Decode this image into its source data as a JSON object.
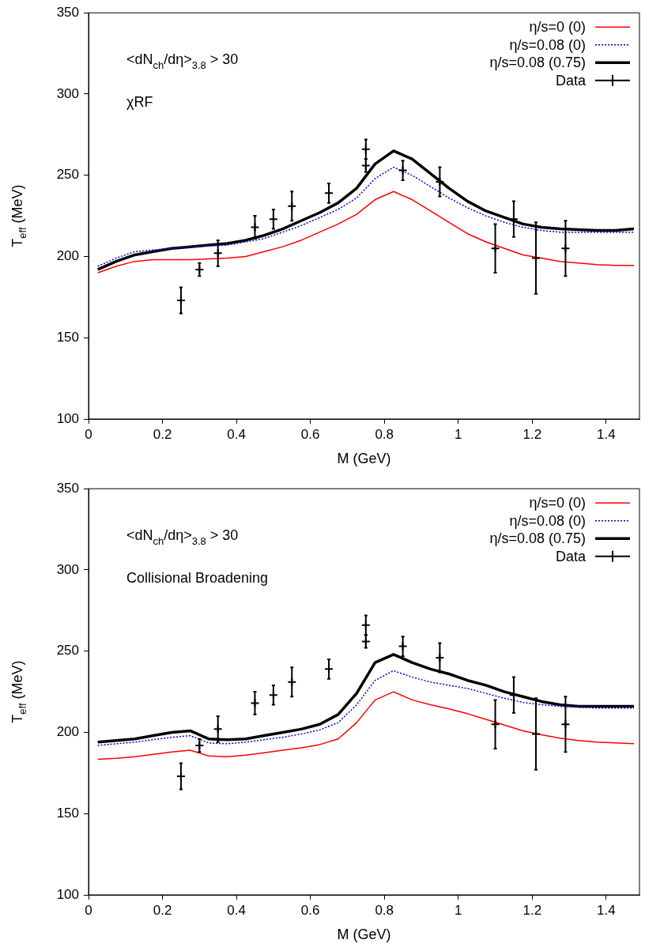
{
  "chart_data": [
    {
      "type": "line",
      "xlabel": "M (GeV)",
      "ylabel": "T$_{eff}$ (MeV)",
      "xlim": [
        0,
        1.49
      ],
      "xticks": [
        0,
        0.2,
        0.4,
        0.6,
        0.8,
        1,
        1.2,
        1.4
      ],
      "ylim": [
        100,
        350
      ],
      "yticks": [
        100,
        150,
        200,
        250,
        300,
        350
      ],
      "grid": false,
      "legend": "top right",
      "marker": "none",
      "annotations": [
        "<dN$_{ch}$/dη>$_{3.8}$ > 30",
        "χRF"
      ],
      "series": [
        {
          "name": "η/s=0 (0)",
          "color": "#ff0000",
          "line_style": "solid",
          "x": [
            0.025,
            0.075,
            0.125,
            0.175,
            0.225,
            0.275,
            0.325,
            0.375,
            0.425,
            0.475,
            0.525,
            0.575,
            0.625,
            0.675,
            0.725,
            0.775,
            0.825,
            0.875,
            0.925,
            0.975,
            1.025,
            1.075,
            1.125,
            1.175,
            1.225,
            1.275,
            1.325,
            1.375,
            1.425,
            1.475
          ],
          "values": [
            190,
            194,
            197,
            198,
            198,
            198,
            198.5,
            199,
            200,
            203,
            206,
            210,
            215,
            220,
            226,
            235,
            240,
            235,
            228,
            221,
            214,
            209,
            205,
            201,
            199,
            197,
            196,
            195,
            194.5,
            194.5
          ]
        },
        {
          "name": "η/s=0.08 (0)",
          "color": "#0000ff",
          "line_style": "dotted",
          "x": [
            0.025,
            0.075,
            0.125,
            0.175,
            0.225,
            0.275,
            0.325,
            0.375,
            0.425,
            0.475,
            0.525,
            0.575,
            0.625,
            0.675,
            0.725,
            0.775,
            0.825,
            0.875,
            0.925,
            0.975,
            1.025,
            1.075,
            1.125,
            1.175,
            1.225,
            1.275,
            1.325,
            1.375,
            1.425,
            1.475
          ],
          "values": [
            194,
            199,
            203,
            204,
            205,
            206,
            206.5,
            207,
            209,
            211,
            215,
            219,
            224,
            229,
            236,
            248,
            255,
            250,
            243,
            236,
            230,
            225,
            221,
            218,
            216,
            215,
            215,
            215,
            215,
            215
          ]
        },
        {
          "name": "η/s=0.08 (0.75)",
          "color": "#000000",
          "line_style": "solid",
          "x": [
            0.025,
            0.075,
            0.125,
            0.175,
            0.225,
            0.275,
            0.325,
            0.375,
            0.425,
            0.475,
            0.525,
            0.575,
            0.625,
            0.675,
            0.725,
            0.775,
            0.825,
            0.875,
            0.925,
            0.975,
            1.025,
            1.075,
            1.125,
            1.175,
            1.225,
            1.275,
            1.325,
            1.375,
            1.425,
            1.475
          ],
          "values": [
            192,
            197,
            201,
            203,
            205,
            206,
            207,
            208,
            210,
            213,
            217,
            222,
            227,
            233,
            242,
            257,
            265,
            260,
            251,
            242,
            234,
            228,
            224,
            220,
            218,
            217,
            216.5,
            216,
            216,
            217
          ]
        },
        {
          "name": "Data",
          "type": "scatter",
          "color": "#000000",
          "marker": "cross",
          "x": [
            0.25,
            0.3,
            0.35,
            0.45,
            0.5,
            0.55,
            0.65,
            0.75,
            0.75,
            0.85,
            0.95,
            1.1,
            1.15,
            1.21,
            1.29
          ],
          "values": [
            173,
            192,
            202,
            218,
            223,
            231,
            239,
            266,
            256,
            253,
            246,
            205,
            223,
            199,
            205
          ],
          "errors": [
            8,
            4,
            8,
            7,
            6,
            9,
            6,
            6,
            4,
            6,
            9,
            15,
            11,
            22,
            17
          ]
        }
      ]
    },
    {
      "type": "line",
      "xlabel": "M (GeV)",
      "ylabel": "T$_{eff}$ (MeV)",
      "xlim": [
        0,
        1.49
      ],
      "xticks": [
        0,
        0.2,
        0.4,
        0.6,
        0.8,
        1,
        1.2,
        1.4
      ],
      "ylim": [
        100,
        350
      ],
      "yticks": [
        100,
        150,
        200,
        250,
        300,
        350
      ],
      "grid": false,
      "legend": "top right",
      "marker": "none",
      "annotations": [
        "<dN$_{ch}$/dη>$_{3.8}$ > 30",
        "Collisional Broadening"
      ],
      "series": [
        {
          "name": "η/s=0 (0)",
          "color": "#ff0000",
          "line_style": "solid",
          "x": [
            0.025,
            0.075,
            0.125,
            0.175,
            0.225,
            0.275,
            0.325,
            0.375,
            0.425,
            0.475,
            0.525,
            0.575,
            0.625,
            0.675,
            0.725,
            0.775,
            0.825,
            0.875,
            0.925,
            0.975,
            1.025,
            1.075,
            1.125,
            1.175,
            1.225,
            1.275,
            1.325,
            1.375,
            1.425,
            1.475
          ],
          "values": [
            183.5,
            184,
            185,
            186.5,
            188,
            189,
            185.5,
            185,
            186,
            187.5,
            189,
            190.5,
            192.5,
            196,
            206,
            220,
            225,
            220,
            217,
            214.5,
            211.5,
            208,
            204.5,
            201,
            198.5,
            196.5,
            195,
            194,
            193.5,
            193
          ]
        },
        {
          "name": "η/s=0.08 (0)",
          "color": "#0000ff",
          "line_style": "dotted",
          "x": [
            0.025,
            0.075,
            0.125,
            0.175,
            0.225,
            0.275,
            0.325,
            0.375,
            0.425,
            0.475,
            0.525,
            0.575,
            0.625,
            0.675,
            0.725,
            0.775,
            0.825,
            0.875,
            0.925,
            0.975,
            1.025,
            1.075,
            1.125,
            1.175,
            1.225,
            1.275,
            1.325,
            1.375,
            1.425,
            1.475
          ],
          "values": [
            192,
            193,
            194,
            195.5,
            197,
            198,
            193.5,
            193,
            194,
            195.5,
            197,
            199,
            201.5,
            206,
            217,
            232,
            238,
            234,
            231,
            229,
            227,
            224,
            221,
            218.5,
            217,
            216,
            215.5,
            215,
            215,
            215
          ]
        },
        {
          "name": "η/s=0.08 (0.75)",
          "color": "#000000",
          "line_style": "solid",
          "x": [
            0.025,
            0.075,
            0.125,
            0.175,
            0.225,
            0.275,
            0.325,
            0.375,
            0.425,
            0.475,
            0.525,
            0.575,
            0.625,
            0.675,
            0.725,
            0.775,
            0.825,
            0.875,
            0.925,
            0.975,
            1.025,
            1.075,
            1.125,
            1.175,
            1.225,
            1.275,
            1.325,
            1.375,
            1.425,
            1.475
          ],
          "values": [
            194,
            195,
            196,
            198,
            200,
            201,
            196,
            195.5,
            196,
            198,
            200,
            202,
            205,
            211,
            224,
            243,
            248,
            243,
            239,
            236,
            232,
            229,
            225,
            222,
            219,
            217,
            216,
            216,
            216,
            216
          ]
        },
        {
          "name": "Data",
          "type": "scatter",
          "color": "#000000",
          "marker": "cross",
          "x": [
            0.25,
            0.3,
            0.35,
            0.45,
            0.5,
            0.55,
            0.65,
            0.75,
            0.75,
            0.85,
            0.95,
            1.1,
            1.15,
            1.21,
            1.29
          ],
          "values": [
            173,
            192,
            202,
            218,
            223,
            231,
            239,
            266,
            256,
            253,
            246,
            205,
            223,
            199,
            205
          ],
          "errors": [
            8,
            4,
            8,
            7,
            6,
            9,
            6,
            6,
            4,
            6,
            9,
            15,
            11,
            22,
            17
          ]
        }
      ]
    }
  ]
}
